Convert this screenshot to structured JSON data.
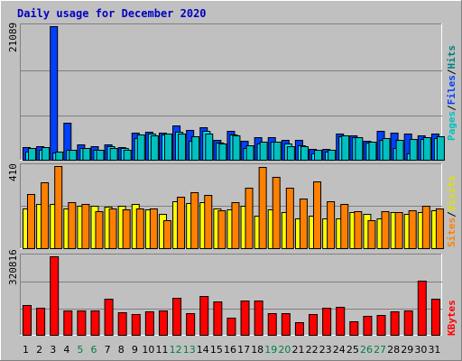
{
  "chart_data": {
    "type": "bar",
    "title": "Daily usage for December 2020",
    "categories": [
      "1",
      "2",
      "3",
      "4",
      "5",
      "6",
      "7",
      "8",
      "9",
      "10",
      "11",
      "12",
      "13",
      "14",
      "15",
      "16",
      "17",
      "18",
      "19",
      "20",
      "21",
      "22",
      "23",
      "24",
      "25",
      "26",
      "27",
      "28",
      "29",
      "30",
      "31"
    ],
    "weekend_days": [
      "5",
      "6",
      "12",
      "13",
      "19",
      "20",
      "26",
      "27"
    ],
    "panels": [
      {
        "name": "hits-files-pages",
        "ymax_label": "21089",
        "ylim": [
          0,
          21089
        ],
        "series": [
          {
            "name": "Hits",
            "color": "#0040ff",
            "values": [
              2000,
              2100,
              21089,
              5800,
              2400,
              2200,
              2400,
              2000,
              4300,
              4400,
              4300,
              5400,
              4700,
              5100,
              3100,
              4500,
              3000,
              3600,
              3500,
              3200,
              3100,
              1700,
              1700,
              4100,
              3800,
              3000,
              4500,
              4300,
              4200,
              3900,
              4100
            ]
          },
          {
            "name": "Files",
            "color": "#00e0ff",
            "values": [
              1300,
              1500,
              1100,
              1500,
              1900,
              1600,
              2100,
              1900,
              3400,
              4100,
              4000,
              4400,
              3000,
              4500,
              2700,
              4000,
              1900,
              2500,
              2900,
              2600,
              2300,
              1000,
              1300,
              3700,
              3500,
              2700,
              3100,
              1900,
              1000,
              3300,
              3400
            ]
          },
          {
            "name": "Pages",
            "color": "#00c0c0",
            "values": [
              1900,
              2000,
              1300,
              1500,
              1800,
              1600,
              1900,
              1500,
              4000,
              3900,
              4100,
              4200,
              3700,
              4100,
              2500,
              3900,
              2300,
              2800,
              2900,
              2200,
              2100,
              1500,
              1500,
              3900,
              3600,
              2800,
              3400,
              3100,
              3300,
              3600,
              3700
            ]
          }
        ]
      },
      {
        "name": "visits-sites",
        "ymax_label": "410",
        "ylim": [
          0,
          410
        ],
        "series": [
          {
            "name": "Visits",
            "color": "#ffff00",
            "values": [
              200,
              220,
              220,
              200,
              210,
              210,
              205,
              210,
              220,
              195,
              170,
              235,
              225,
              230,
              200,
              195,
              210,
              160,
              195,
              180,
              150,
              160,
              150,
              150,
              180,
              170,
              150,
              180,
              170,
              180,
              190
            ]
          },
          {
            "name": "Sites",
            "color": "#ff8000",
            "values": [
              270,
              330,
              410,
              230,
              220,
              185,
              200,
              195,
              200,
              200,
              140,
              255,
              280,
              265,
              190,
              230,
              300,
              405,
              355,
              300,
              250,
              335,
              235,
              220,
              185,
              140,
              185,
              180,
              190,
              210,
              200
            ]
          }
        ]
      },
      {
        "name": "kbytes",
        "ymax_label": "320816",
        "ylim": [
          0,
          320816
        ],
        "series": [
          {
            "name": "KBytes",
            "color": "#ff0000",
            "values": [
              120000,
              110000,
              320816,
              100000,
              100000,
              98000,
              146000,
              92000,
              85000,
              96000,
              98000,
              150000,
              90000,
              160000,
              138000,
              70000,
              140000,
              140000,
              87000,
              90000,
              52000,
              86000,
              110000,
              116000,
              54000,
              76000,
              80000,
              96000,
              98000,
              220000,
              148000
            ]
          }
        ]
      }
    ],
    "legend": {
      "top": [
        {
          "text": "Pages",
          "color": "#00c0c0"
        },
        {
          "text": "/",
          "color": "#000000"
        },
        {
          "text": "Files",
          "color": "#0040ff"
        },
        {
          "text": "/",
          "color": "#000000"
        },
        {
          "text": "Hits",
          "color": "#008080"
        }
      ],
      "middle": [
        {
          "text": "Sites",
          "color": "#ff8000"
        },
        {
          "text": "/",
          "color": "#000000"
        },
        {
          "text": "Visits",
          "color": "#e0e000"
        }
      ],
      "bottom": [
        {
          "text": "KBytes",
          "color": "#ff0000"
        }
      ]
    },
    "colors": {
      "title": "#0000c0",
      "background": "#c0c0c0",
      "grid": "#808080",
      "tick": "#000000",
      "weekend_tick": "#008040"
    },
    "grid": true
  }
}
